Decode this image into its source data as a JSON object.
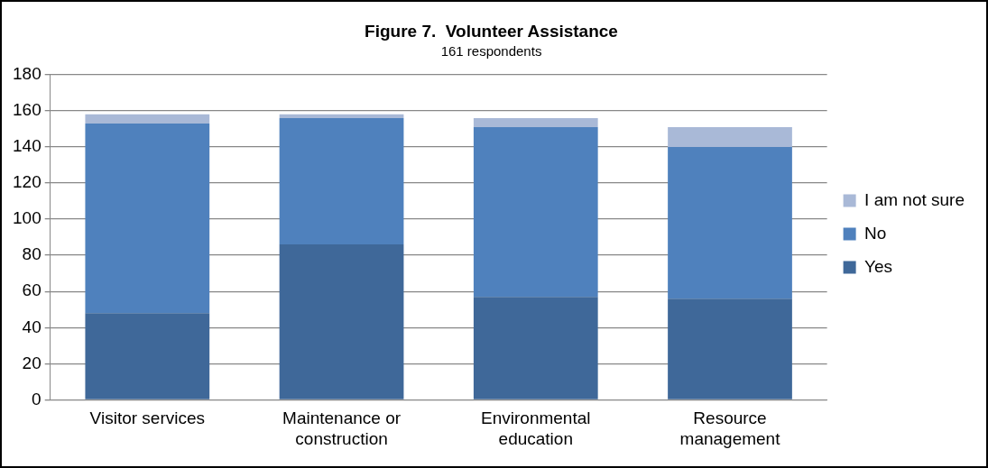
{
  "chart_data": {
    "type": "bar",
    "title": "Figure 7.  Volunteer Assistance",
    "subtitle": "161 respondents",
    "categories": [
      "Visitor services",
      "Maintenance or construction",
      "Environmental education",
      "Resource management"
    ],
    "series": [
      {
        "name": "Yes",
        "color": "#3f6899",
        "values": [
          48,
          86,
          57,
          56
        ]
      },
      {
        "name": "No",
        "color": "#4f81bd",
        "values": [
          105,
          70,
          94,
          84
        ]
      },
      {
        "name": "I am not sure",
        "color": "#a9b9d7",
        "values": [
          5,
          2,
          5,
          11
        ]
      }
    ],
    "stacked": true,
    "ylim": [
      0,
      180
    ],
    "yticks": [
      0,
      20,
      40,
      60,
      80,
      100,
      120,
      140,
      160,
      180
    ],
    "grid": "y",
    "legend": "right"
  }
}
